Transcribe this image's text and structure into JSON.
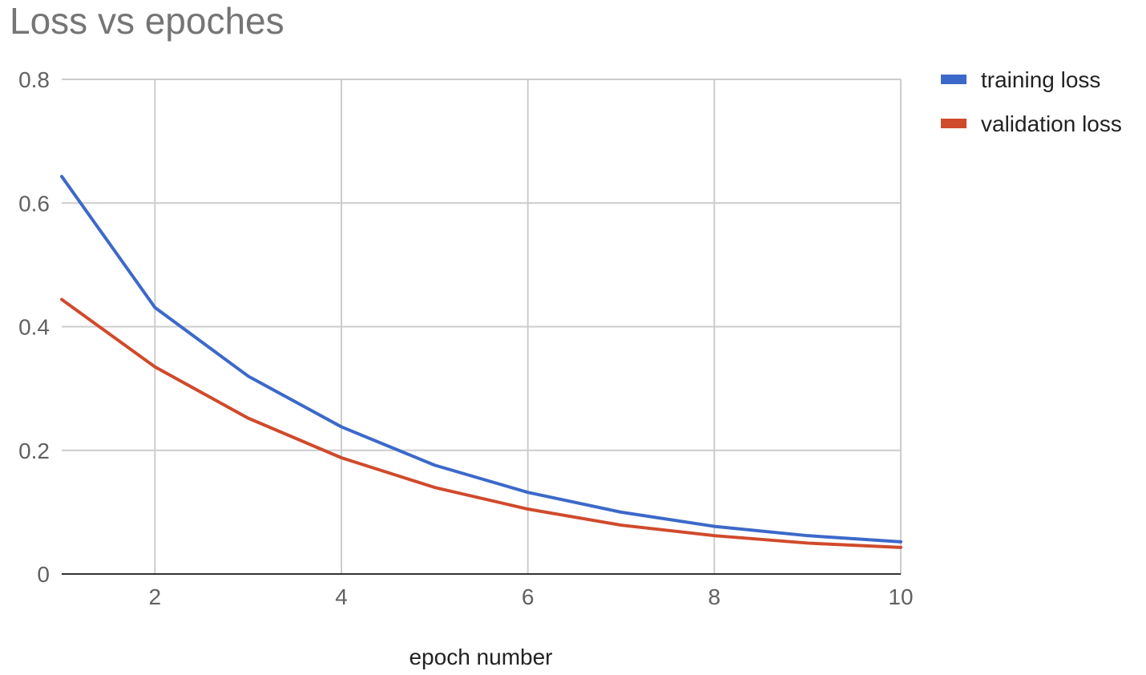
{
  "chart_data": {
    "type": "line",
    "title": "Loss vs epoches",
    "xlabel": "epoch number",
    "ylabel": "",
    "x": [
      1,
      2,
      3,
      4,
      5,
      6,
      7,
      8,
      9,
      10
    ],
    "xlim": [
      1,
      10
    ],
    "ylim": [
      0,
      0.8
    ],
    "x_ticks": [
      2,
      4,
      6,
      8,
      10
    ],
    "y_ticks": [
      0,
      0.2,
      0.4,
      0.6,
      0.8
    ],
    "x_tick_labels": [
      "2",
      "4",
      "6",
      "8",
      "10"
    ],
    "y_tick_labels": [
      "0",
      "0.2",
      "0.4",
      "0.6",
      "0.8"
    ],
    "grid": true,
    "legend_position": "right",
    "series": [
      {
        "name": "training loss",
        "color": "#3c69c9",
        "values": [
          0.643,
          0.431,
          0.32,
          0.238,
          0.176,
          0.132,
          0.1,
          0.077,
          0.062,
          0.052
        ]
      },
      {
        "name": "validation loss",
        "color": "#d04a2c",
        "values": [
          0.444,
          0.335,
          0.252,
          0.188,
          0.14,
          0.105,
          0.079,
          0.062,
          0.05,
          0.043
        ]
      }
    ]
  }
}
